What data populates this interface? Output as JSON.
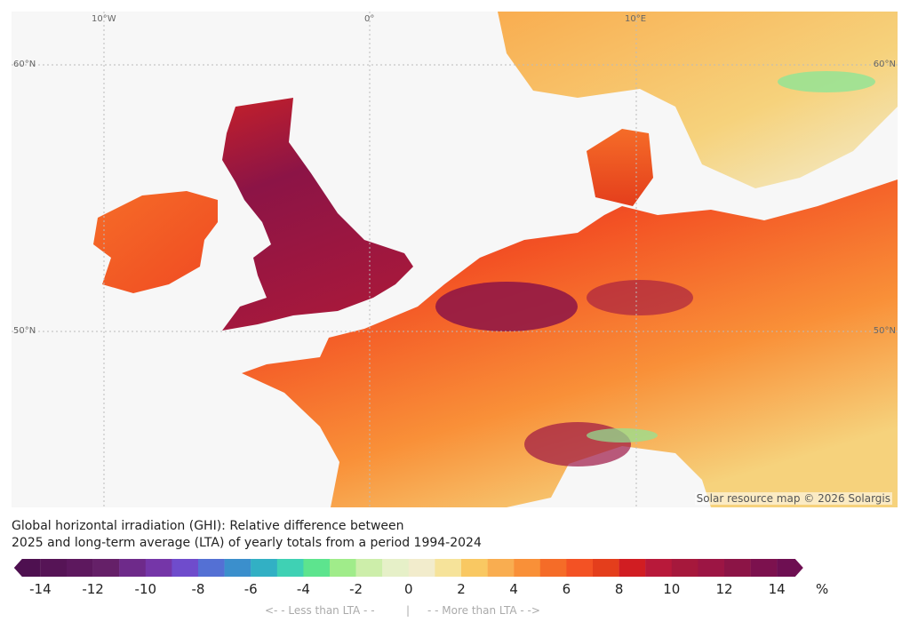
{
  "map": {
    "grid_labels": {
      "lon": [
        "10°W",
        "0°",
        "10°E"
      ],
      "lat_left": [
        "60°N",
        "50°N"
      ],
      "lat_right": [
        "60°N",
        "50°N"
      ]
    },
    "attribution": "Solar resource map © 2026 Solargis",
    "land_colors": {
      "sea": "#f7f7f7",
      "strong_positive": "#8c1446",
      "positive": "#e4421e",
      "moderate": "#f7902f",
      "slight": "#f6d27c",
      "negative": "#8fe596"
    }
  },
  "legend": {
    "title_line1": "Global horizontal irradiation (GHI): Relative difference between",
    "title_line2": "2025 and long-term average (LTA) of yearly totals from a period 1994-2024",
    "min": -15,
    "max": 15,
    "colors": [
      "#4e1050",
      "#561456",
      "#5d185e",
      "#652068",
      "#6e2a8a",
      "#7536a8",
      "#6f4ccc",
      "#5470d4",
      "#3b8fcc",
      "#32b0c4",
      "#3fd1b4",
      "#5de48e",
      "#a0ec8a",
      "#cdeeaa",
      "#e6f0c8",
      "#f2eccc",
      "#f6e39a",
      "#f9c862",
      "#f9ad50",
      "#f99038",
      "#f56c28",
      "#f35224",
      "#e43e1c",
      "#d11d22",
      "#b8193a",
      "#a6183c",
      "#9c1544",
      "#8c1446",
      "#7c114e",
      "#6e0f52"
    ],
    "ticks": [
      "-14",
      "-12",
      "-10",
      "-8",
      "-6",
      "-4",
      "-2",
      "0",
      "2",
      "4",
      "6",
      "8",
      "10",
      "12",
      "14"
    ],
    "unit": "%",
    "less_label": "<- - Less than LTA - -",
    "separator": "|",
    "more_label": "- - More than LTA - ->"
  }
}
